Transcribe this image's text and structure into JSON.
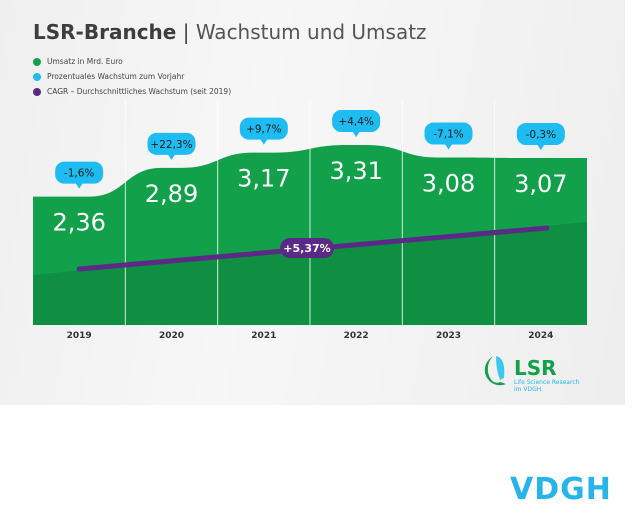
{
  "chart_data": {
    "type": "area",
    "title": "LSR-Branche",
    "subtitle": "Wachstum und Umsatz",
    "legend": [
      {
        "label": "Umsatz in Mrd. Euro",
        "color": "#12a04a"
      },
      {
        "label": "Prozentuales Wachstum zum Vorjahr",
        "color": "#1ebcf0"
      },
      {
        "label": "CAGR – Durchschnittliches Wachstum (seit 2019)",
        "color": "#5b2a86"
      }
    ],
    "legend_position": "top-left",
    "categories": [
      "2019",
      "2020",
      "2021",
      "2022",
      "2023",
      "2024"
    ],
    "series": [
      {
        "name": "Umsatz in Mrd. Euro",
        "values": [
          2.36,
          2.89,
          3.17,
          3.31,
          3.08,
          3.07
        ],
        "labels": [
          "2,36",
          "2,89",
          "3,17",
          "3,31",
          "3,08",
          "3,07"
        ]
      },
      {
        "name": "Prozentuales Wachstum zum Vorjahr",
        "values": [
          -1.6,
          22.3,
          9.7,
          4.4,
          -7.1,
          -0.3
        ],
        "labels": [
          "-1,6%",
          "+22,3%",
          "+9,7%",
          "+4,4%",
          "-7,1%",
          "-0,3%"
        ]
      }
    ],
    "cagr": {
      "value": 5.37,
      "label": "+5,37%"
    },
    "grid": false
  },
  "logo": {
    "name": "LSR",
    "tagline1": "Life Science Research",
    "tagline2": "im VDGH"
  },
  "footer_logo": "VDGH"
}
